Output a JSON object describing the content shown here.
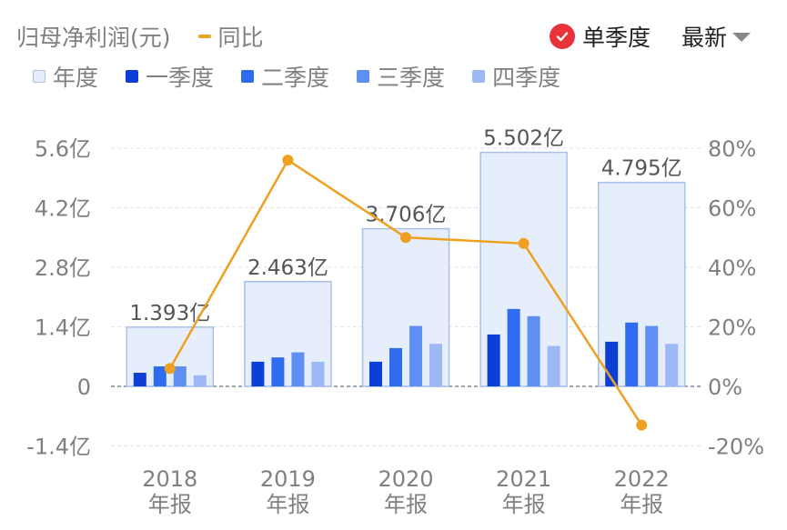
{
  "header": {
    "title": "归母净利润(元)",
    "yoy_label": "同比",
    "single_quarter_label": "单季度",
    "latest_label": "最新"
  },
  "legend": [
    {
      "label": "年度",
      "color": "#e6eefc",
      "border": "#a8c0ec"
    },
    {
      "label": "一季度",
      "color": "#0b3fd6"
    },
    {
      "label": "二季度",
      "color": "#2f6cf0"
    },
    {
      "label": "三季度",
      "color": "#5f8ff3"
    },
    {
      "label": "四季度",
      "color": "#9db8f5"
    }
  ],
  "colors": {
    "yoy_line": "#f0a020",
    "check_badge": "#e8333a",
    "axis_text": "#808080"
  },
  "chart_data": {
    "type": "bar",
    "categories": [
      "2018",
      "2019",
      "2020",
      "2021",
      "2022"
    ],
    "category_sublabel": "年报",
    "annual_values": [
      1.393,
      2.463,
      3.706,
      5.502,
      4.795
    ],
    "annual_labels": [
      "1.393亿",
      "2.463亿",
      "3.706亿",
      "5.502亿",
      "4.795亿"
    ],
    "series": [
      {
        "name": "一季度",
        "values": [
          0.32,
          0.58,
          0.58,
          1.22,
          1.05
        ]
      },
      {
        "name": "二季度",
        "values": [
          0.47,
          0.68,
          0.9,
          1.82,
          1.5
        ]
      },
      {
        "name": "三季度",
        "values": [
          0.47,
          0.8,
          1.42,
          1.65,
          1.42
        ]
      },
      {
        "name": "四季度",
        "values": [
          0.26,
          0.58,
          1.0,
          0.95,
          1.0
        ]
      }
    ],
    "yoy": {
      "name": "同比",
      "values": [
        6,
        76,
        50,
        48,
        -13
      ]
    },
    "y_left": {
      "ticks": [
        5.6,
        4.2,
        2.8,
        1.4,
        0,
        -1.4
      ],
      "tick_labels": [
        "5.6亿",
        "4.2亿",
        "2.8亿",
        "1.4亿",
        "0",
        "-1.4亿"
      ],
      "ylim": [
        -1.4,
        5.6
      ]
    },
    "y_right": {
      "ticks": [
        80,
        60,
        40,
        20,
        0,
        -20
      ],
      "tick_labels": [
        "80%",
        "60%",
        "40%",
        "20%",
        "0%",
        "-20%"
      ],
      "ylim": [
        -20,
        80
      ]
    }
  }
}
